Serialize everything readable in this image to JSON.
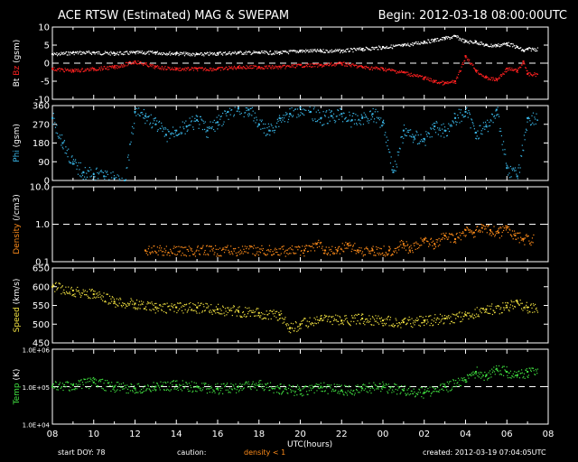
{
  "header": {
    "title": "ACE RTSW (Estimated) MAG & SWEPAM",
    "begin": "Begin: 2012-03-18 08:00:00UTC"
  },
  "footer": {
    "start_doy": "start DOY:  78",
    "caution": "caution:",
    "density_note": "density < 1",
    "created": "created: 2012-03-19 07:04:05UTC"
  },
  "chart_data": [
    {
      "type": "line",
      "panel": "magnetic field",
      "ylabel_parts": [
        {
          "text": "Bt",
          "color": "#ffffff"
        },
        {
          "text": "Bz",
          "color": "#ff2020"
        },
        {
          "text": "(gsm)",
          "color": "#ffffff"
        }
      ],
      "ylim": [
        -10,
        10
      ],
      "yticks": [
        "10",
        "5",
        "0",
        "-5",
        "-10"
      ],
      "reference_line": 0,
      "series": [
        {
          "key": "Bt",
          "color": "#ffffff",
          "x": [
            8,
            9,
            10,
            11,
            12,
            13,
            14,
            15,
            16,
            17,
            18,
            19,
            20,
            21,
            22,
            23,
            24,
            25,
            26,
            26.5,
            27,
            27.5,
            28,
            28.5,
            29,
            29.5,
            30,
            30.5,
            30.8,
            31
          ],
          "y": [
            2.5,
            3,
            3,
            2.8,
            3,
            3,
            2.8,
            2.5,
            2.8,
            3,
            3,
            3,
            3.5,
            3.5,
            3.5,
            4,
            4.5,
            5,
            6,
            6.5,
            7,
            7.5,
            6,
            6,
            5,
            5,
            5.5,
            4.5,
            3.5,
            4
          ]
        },
        {
          "key": "Bz",
          "color": "#ff2020",
          "x": [
            8,
            9,
            10,
            11,
            12,
            13,
            14,
            15,
            16,
            17,
            18,
            19,
            20,
            21,
            22,
            23,
            24,
            25,
            26,
            26.5,
            27,
            27.5,
            28,
            28.5,
            29,
            29.5,
            30,
            30.5,
            30.8,
            31
          ],
          "y": [
            -1.5,
            -2,
            -1.5,
            -1,
            0.5,
            -1,
            -1.5,
            -1.5,
            -1.5,
            -1,
            -1,
            -1,
            -0.5,
            -0.5,
            0,
            -1,
            -1.5,
            -2.5,
            -4,
            -5,
            -5.5,
            -5,
            2,
            -2,
            -4,
            -4.5,
            -1.5,
            -2,
            0.5,
            -3
          ]
        }
      ]
    },
    {
      "type": "scatter",
      "panel": "phi",
      "ylabel_parts": [
        {
          "text": "Phi",
          "color": "#3ab7e8"
        },
        {
          "text": "(gsm)",
          "color": "#ffffff"
        }
      ],
      "ylim": [
        0,
        360
      ],
      "yticks": [
        "360",
        "270",
        "180",
        "90",
        "0"
      ],
      "series": [
        {
          "key": "Phi",
          "color": "#3ab7e8",
          "x": [
            8,
            8.5,
            9,
            9.5,
            10,
            10.5,
            11,
            11.5,
            12,
            12.5,
            13,
            13.5,
            14,
            14.5,
            15,
            15.5,
            16,
            16.5,
            17,
            17.5,
            18,
            18.5,
            19,
            19.5,
            20,
            20.5,
            21,
            21.5,
            22,
            22.5,
            23,
            23.5,
            24,
            24.5,
            25,
            25.5,
            26,
            26.5,
            27,
            27.5,
            28,
            28.5,
            29,
            29.5,
            30,
            30.5,
            31
          ],
          "y": [
            300,
            180,
            80,
            40,
            30,
            20,
            10,
            0,
            330,
            310,
            270,
            220,
            240,
            260,
            290,
            240,
            280,
            330,
            345,
            340,
            270,
            240,
            300,
            320,
            350,
            330,
            300,
            310,
            320,
            290,
            300,
            320,
            280,
            40,
            240,
            210,
            200,
            260,
            240,
            300,
            330,
            230,
            260,
            340,
            60,
            20,
            300
          ]
        }
      ]
    },
    {
      "type": "scatter",
      "panel": "density",
      "ylabel_parts": [
        {
          "text": "Density",
          "color": "#ff8c1a"
        },
        {
          "text": "(/cm3)",
          "color": "#ffffff"
        }
      ],
      "scale": "log",
      "ylim": [
        0.1,
        10
      ],
      "yticks": [
        "10.0",
        "1.0",
        "0.1"
      ],
      "reference_line": 1.0,
      "series": [
        {
          "key": "Density",
          "color": "#ff8c1a",
          "x": [
            12.5,
            20.2,
            20.8,
            21.2,
            21.8,
            22.3,
            22.8,
            23.5,
            24.3,
            25,
            25.3,
            26,
            26.5,
            27,
            27.5,
            28,
            28.4,
            28.8,
            29.2,
            29.6,
            30,
            30.4,
            30.8
          ],
          "y": [
            0.2,
            0.2,
            0.3,
            0.2,
            0.2,
            0.3,
            0.2,
            0.2,
            0.2,
            0.3,
            0.2,
            0.4,
            0.3,
            0.5,
            0.4,
            0.7,
            0.6,
            0.8,
            0.7,
            0.6,
            0.8,
            0.5,
            0.4
          ]
        }
      ]
    },
    {
      "type": "scatter",
      "panel": "speed",
      "ylabel_parts": [
        {
          "text": "Speed",
          "color": "#f0e040"
        },
        {
          "text": "(km/s)",
          "color": "#ffffff"
        }
      ],
      "ylim": [
        450,
        650
      ],
      "yticks": [
        "650",
        "600",
        "550",
        "500",
        "450"
      ],
      "series": [
        {
          "key": "Speed",
          "color": "#f0e040",
          "x": [
            8,
            9,
            10,
            11,
            12,
            13,
            14,
            15,
            16,
            17,
            18,
            19,
            19.5,
            20,
            21,
            22,
            23,
            24,
            25,
            26,
            27,
            28,
            29,
            30,
            30.5,
            31
          ],
          "y": [
            600,
            590,
            580,
            560,
            555,
            545,
            545,
            545,
            540,
            535,
            530,
            525,
            490,
            500,
            515,
            510,
            515,
            510,
            505,
            510,
            515,
            525,
            540,
            545,
            560,
            545
          ]
        }
      ]
    },
    {
      "type": "scatter",
      "panel": "temperature",
      "ylabel_parts": [
        {
          "text": "Temp",
          "color": "#40e040"
        },
        {
          "text": "(K)",
          "color": "#ffffff"
        }
      ],
      "scale": "log",
      "ylim": [
        10000,
        1000000
      ],
      "yticks": [
        "1.0E+06",
        "1.0E+05",
        "1.0E+04"
      ],
      "reference_line": 100000,
      "series": [
        {
          "key": "Temp",
          "color": "#40e040",
          "x": [
            8,
            9,
            10,
            11,
            12,
            13,
            14,
            15,
            16,
            17,
            18,
            19,
            20,
            21,
            22,
            23,
            24,
            25,
            26,
            27,
            28,
            28.5,
            29,
            29.5,
            30,
            30.5,
            31
          ],
          "y": [
            100000,
            110000,
            130000,
            100000,
            90000,
            100000,
            110000,
            100000,
            90000,
            100000,
            110000,
            90000,
            80000,
            100000,
            80000,
            90000,
            100000,
            80000,
            70000,
            100000,
            150000,
            250000,
            200000,
            300000,
            250000,
            200000,
            250000
          ]
        }
      ]
    }
  ],
  "x_axis": {
    "label": "UTC(hours)",
    "xlim": [
      8,
      32
    ],
    "ticks": [
      "08",
      "10",
      "12",
      "14",
      "16",
      "18",
      "20",
      "22",
      "00",
      "02",
      "04",
      "06",
      "08"
    ]
  }
}
